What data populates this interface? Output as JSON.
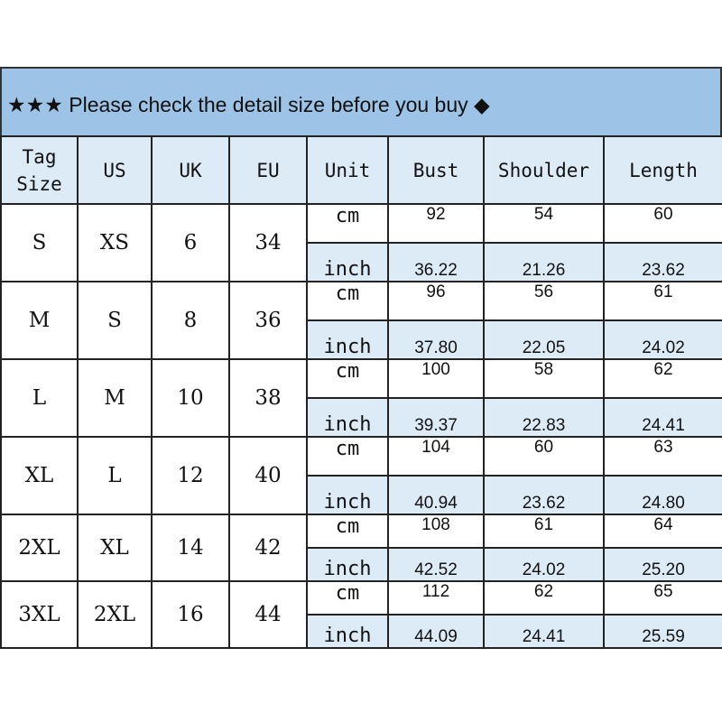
{
  "title": "★★★ Please check the detail size before you buy ◆",
  "colors": {
    "title_bg": "#9dc3e6",
    "header_bg": "#ddebf7",
    "inch_row_bg": "#ddebf7"
  },
  "headers": [
    "Tag Size",
    "US",
    "UK",
    "EU",
    "Unit",
    "Bust",
    "Shoulder",
    "Length"
  ],
  "rows": [
    {
      "tag": "S",
      "us": "XS",
      "uk": "6",
      "eu": "34",
      "cm": {
        "unit": "cm",
        "bust": "92",
        "shoulder": "54",
        "length": "60"
      },
      "inch": {
        "unit": "inch",
        "bust": "36.22",
        "shoulder": "21.26",
        "length": "23.62"
      }
    },
    {
      "tag": "M",
      "us": "S",
      "uk": "8",
      "eu": "36",
      "cm": {
        "unit": "cm",
        "bust": "96",
        "shoulder": "56",
        "length": "61"
      },
      "inch": {
        "unit": "inch",
        "bust": "37.80",
        "shoulder": "22.05",
        "length": "24.02"
      }
    },
    {
      "tag": "L",
      "us": "M",
      "uk": "10",
      "eu": "38",
      "cm": {
        "unit": "cm",
        "bust": "100",
        "shoulder": "58",
        "length": "62"
      },
      "inch": {
        "unit": "inch",
        "bust": "39.37",
        "shoulder": "22.83",
        "length": "24.41"
      }
    },
    {
      "tag": "XL",
      "us": "L",
      "uk": "12",
      "eu": "40",
      "cm": {
        "unit": "cm",
        "bust": "104",
        "shoulder": "60",
        "length": "63"
      },
      "inch": {
        "unit": "inch",
        "bust": "40.94",
        "shoulder": "23.62",
        "length": "24.80"
      }
    },
    {
      "tag": "2XL",
      "us": "XL",
      "uk": "14",
      "eu": "42",
      "cm": {
        "unit": "cm",
        "bust": "108",
        "shoulder": "61",
        "length": "64"
      },
      "inch": {
        "unit": "inch",
        "bust": "42.52",
        "shoulder": "24.02",
        "length": "25.20"
      }
    },
    {
      "tag": "3XL",
      "us": "2XL",
      "uk": "16",
      "eu": "44",
      "cm": {
        "unit": "cm",
        "bust": "112",
        "shoulder": "62",
        "length": "65"
      },
      "inch": {
        "unit": "inch",
        "bust": "44.09",
        "shoulder": "24.41",
        "length": "25.59"
      }
    }
  ]
}
